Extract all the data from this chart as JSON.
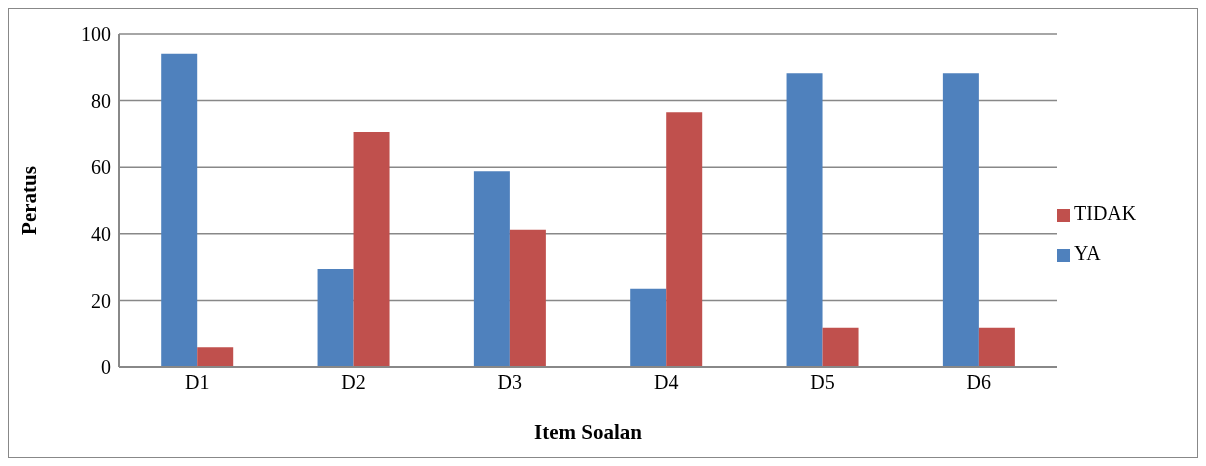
{
  "chart_data": {
    "type": "bar",
    "xlabel": "Item Soalan",
    "ylabel": "Peratus",
    "categories": [
      "D1",
      "D2",
      "D3",
      "D4",
      "D5",
      "D6"
    ],
    "series": [
      {
        "name": "YA",
        "color": "#4f81bd",
        "values": [
          94.1,
          29.4,
          58.8,
          23.5,
          88.2,
          88.2
        ]
      },
      {
        "name": "TIDAK",
        "color": "#c0504d",
        "values": [
          5.9,
          70.6,
          41.2,
          76.5,
          11.8,
          11.8
        ]
      }
    ],
    "ylim": [
      0,
      100
    ],
    "yticks": [
      0,
      20,
      40,
      60,
      80,
      100
    ],
    "grid": "y",
    "legend": "right"
  }
}
